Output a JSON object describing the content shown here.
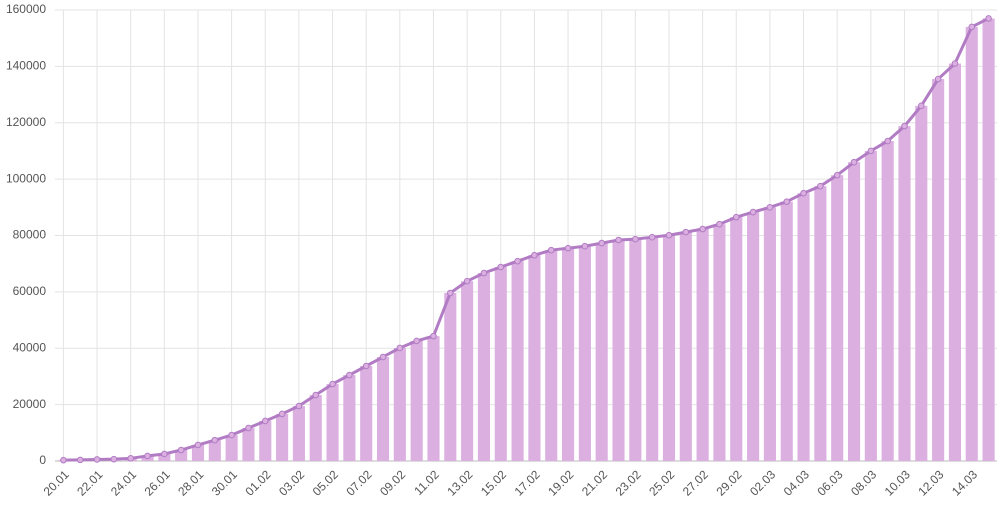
{
  "chart_data": {
    "type": "bar-line",
    "categories": [
      "20.01",
      null,
      "22.01",
      null,
      "24.01",
      null,
      "26.01",
      null,
      "28.01",
      null,
      "30.01",
      null,
      "01.02",
      null,
      "03.02",
      null,
      "05.02",
      null,
      "07.02",
      null,
      "09.02",
      null,
      "11.02",
      null,
      "13.02",
      null,
      "15.02",
      null,
      "17.02",
      null,
      "19.02",
      null,
      "21.02",
      null,
      "23.02",
      null,
      "25.02",
      null,
      "27.02",
      null,
      "29.02",
      null,
      "02.03",
      null,
      "04.03",
      null,
      "06.03",
      null,
      "08.03",
      null,
      "10.03",
      null,
      "12.03",
      null,
      "14.03",
      null
    ],
    "values": [
      300,
      400,
      550,
      650,
      950,
      1800,
      2500,
      3900,
      5700,
      7400,
      9200,
      11700,
      14200,
      16700,
      19500,
      23400,
      27300,
      30500,
      33700,
      36900,
      40100,
      42600,
      44300,
      59600,
      63800,
      66700,
      68800,
      70900,
      73000,
      74800,
      75500,
      76200,
      77300,
      78400,
      78700,
      79400,
      80100,
      81200,
      82300,
      84000,
      86500,
      88300,
      90000,
      92000,
      95000,
      97500,
      101400,
      106000,
      110000,
      113500,
      118800,
      126000,
      135500,
      141000,
      154000,
      157000
    ],
    "bar_color": "#dbb0e0",
    "line_color": "#b17cc4",
    "ylim": [
      0,
      160000
    ],
    "yticks": [
      0,
      20000,
      40000,
      60000,
      80000,
      100000,
      120000,
      140000,
      160000
    ],
    "grid": true
  }
}
